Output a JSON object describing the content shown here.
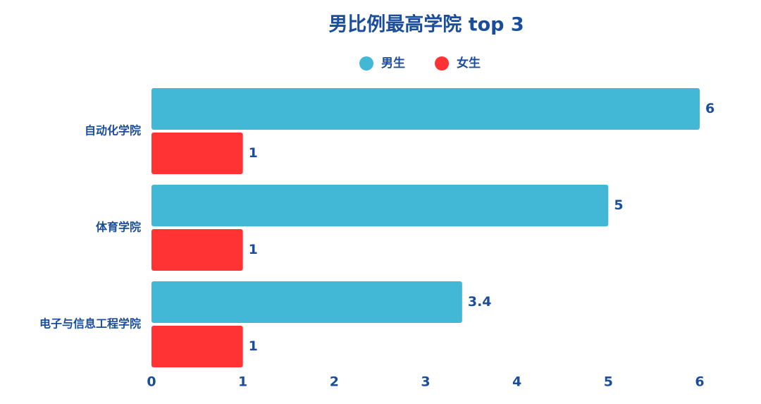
{
  "chart_data": {
    "type": "bar",
    "orientation": "horizontal",
    "title": "男比例最高学院 top 3",
    "categories": [
      "自动化学院",
      "体育学院",
      "电子与信息工程学院"
    ],
    "series": [
      {
        "name": "男生",
        "color": "#42b8d6",
        "values": [
          6,
          5,
          3.4
        ]
      },
      {
        "name": "女生",
        "color": "#ff3333",
        "values": [
          1,
          1,
          1
        ]
      }
    ],
    "xlim": [
      0,
      6
    ],
    "xticks": [
      0,
      1,
      2,
      3,
      4,
      5,
      6
    ],
    "grid": false,
    "legend": "top"
  }
}
